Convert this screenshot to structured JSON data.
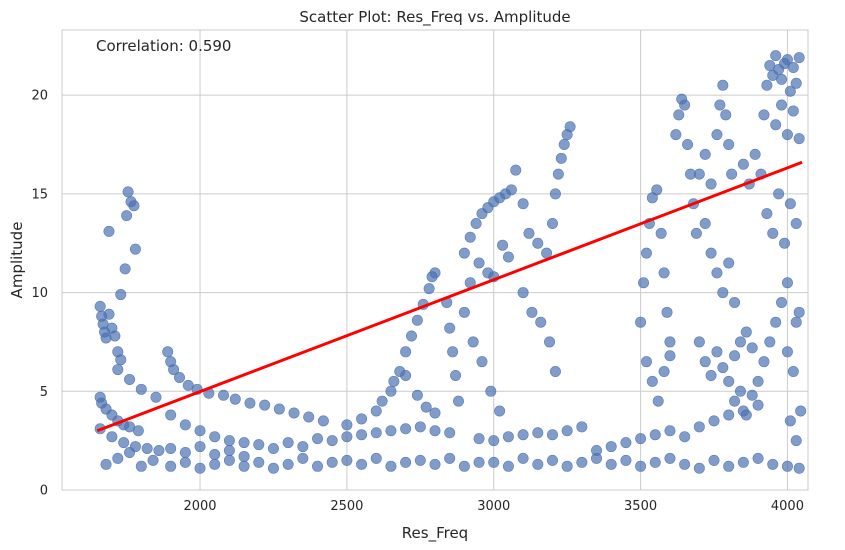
{
  "chart_data": {
    "type": "scatter",
    "title": "Scatter Plot: Res_Freq vs. Amplitude",
    "xlabel": "Res_Freq",
    "ylabel": "Amplitude",
    "annotation": "Correlation: 0.590",
    "xlim": [
      1530,
      4070
    ],
    "ylim": [
      0,
      23.3
    ],
    "xticks": [
      2000,
      2500,
      3000,
      3500,
      4000
    ],
    "yticks": [
      0,
      5,
      10,
      15,
      20
    ],
    "grid": true,
    "point_color": "#4c72b0",
    "line_color": "#ff0000",
    "regression_line": {
      "x": [
        1650,
        4050
      ],
      "y": [
        3.0,
        16.6
      ]
    },
    "series": [
      {
        "values": [
          [
            1660,
            9.3
          ],
          [
            1665,
            8.8
          ],
          [
            1670,
            8.4
          ],
          [
            1675,
            8.0
          ],
          [
            1680,
            7.7
          ],
          [
            1690,
            8.9
          ],
          [
            1700,
            8.2
          ],
          [
            1710,
            7.8
          ],
          [
            1720,
            7.0
          ],
          [
            1730,
            6.6
          ],
          [
            1660,
            4.7
          ],
          [
            1665,
            4.4
          ],
          [
            1680,
            4.1
          ],
          [
            1700,
            3.8
          ],
          [
            1720,
            3.5
          ],
          [
            1740,
            3.3
          ],
          [
            1760,
            3.2
          ],
          [
            1790,
            3.0
          ],
          [
            1660,
            3.1
          ],
          [
            1700,
            2.7
          ],
          [
            1740,
            2.4
          ],
          [
            1780,
            2.2
          ],
          [
            1820,
            2.1
          ],
          [
            1860,
            2.0
          ],
          [
            1690,
            13.1
          ],
          [
            1730,
            9.9
          ],
          [
            1745,
            11.2
          ],
          [
            1750,
            13.9
          ],
          [
            1755,
            15.1
          ],
          [
            1765,
            14.6
          ],
          [
            1775,
            14.4
          ],
          [
            1780,
            12.2
          ],
          [
            1720,
            6.1
          ],
          [
            1760,
            5.6
          ],
          [
            1800,
            5.1
          ],
          [
            1850,
            4.7
          ],
          [
            1680,
            1.3
          ],
          [
            1720,
            1.6
          ],
          [
            1760,
            1.9
          ],
          [
            1800,
            1.2
          ],
          [
            1840,
            1.5
          ],
          [
            1890,
            7.0
          ],
          [
            1900,
            6.5
          ],
          [
            1910,
            6.1
          ],
          [
            1930,
            5.7
          ],
          [
            1960,
            5.3
          ],
          [
            1990,
            5.1
          ],
          [
            2030,
            4.9
          ],
          [
            2080,
            4.8
          ],
          [
            2120,
            4.6
          ],
          [
            2170,
            4.4
          ],
          [
            2220,
            4.3
          ],
          [
            2270,
            4.1
          ],
          [
            2320,
            3.9
          ],
          [
            2370,
            3.7
          ],
          [
            2420,
            3.5
          ],
          [
            1900,
            3.8
          ],
          [
            1950,
            3.3
          ],
          [
            2000,
            3.0
          ],
          [
            2050,
            2.7
          ],
          [
            2100,
            2.5
          ],
          [
            2150,
            2.4
          ],
          [
            1900,
            2.1
          ],
          [
            1950,
            1.9
          ],
          [
            2000,
            2.2
          ],
          [
            2050,
            1.8
          ],
          [
            2100,
            2.0
          ],
          [
            2150,
            1.7
          ],
          [
            2200,
            2.3
          ],
          [
            2250,
            2.1
          ],
          [
            2300,
            2.4
          ],
          [
            2350,
            2.2
          ],
          [
            2400,
            2.6
          ],
          [
            2450,
            2.5
          ],
          [
            2500,
            2.7
          ],
          [
            2550,
            2.8
          ],
          [
            2600,
            2.9
          ],
          [
            2650,
            3.0
          ],
          [
            2700,
            3.1
          ],
          [
            2750,
            3.2
          ],
          [
            2800,
            3.0
          ],
          [
            2850,
            2.9
          ],
          [
            1900,
            1.2
          ],
          [
            1950,
            1.4
          ],
          [
            2000,
            1.1
          ],
          [
            2050,
            1.3
          ],
          [
            2100,
            1.5
          ],
          [
            2150,
            1.2
          ],
          [
            2200,
            1.4
          ],
          [
            2250,
            1.1
          ],
          [
            2300,
            1.3
          ],
          [
            2350,
            1.6
          ],
          [
            2400,
            1.2
          ],
          [
            2450,
            1.4
          ],
          [
            2500,
            1.5
          ],
          [
            2550,
            1.3
          ],
          [
            2600,
            1.6
          ],
          [
            2650,
            1.2
          ],
          [
            2700,
            1.4
          ],
          [
            2750,
            1.5
          ],
          [
            2800,
            1.3
          ],
          [
            2850,
            1.6
          ],
          [
            2900,
            1.2
          ],
          [
            2950,
            1.4
          ],
          [
            2500,
            3.3
          ],
          [
            2550,
            3.6
          ],
          [
            2600,
            4.0
          ],
          [
            2650,
            5.0
          ],
          [
            2680,
            6.0
          ],
          [
            2700,
            7.0
          ],
          [
            2720,
            7.8
          ],
          [
            2740,
            8.6
          ],
          [
            2760,
            9.4
          ],
          [
            2780,
            10.2
          ],
          [
            2790,
            10.8
          ],
          [
            2800,
            11.0
          ],
          [
            2620,
            4.5
          ],
          [
            2660,
            5.5
          ],
          [
            2700,
            5.8
          ],
          [
            2740,
            4.8
          ],
          [
            2770,
            4.2
          ],
          [
            2800,
            3.9
          ],
          [
            2840,
            9.5
          ],
          [
            2850,
            8.2
          ],
          [
            2860,
            7.0
          ],
          [
            2870,
            5.8
          ],
          [
            2880,
            4.5
          ],
          [
            2900,
            12.0
          ],
          [
            2920,
            12.8
          ],
          [
            2940,
            13.5
          ],
          [
            2960,
            14.0
          ],
          [
            2980,
            14.3
          ],
          [
            3000,
            14.6
          ],
          [
            3020,
            14.8
          ],
          [
            3040,
            15.0
          ],
          [
            3060,
            15.2
          ],
          [
            3075,
            16.2
          ],
          [
            2920,
            10.5
          ],
          [
            2950,
            11.5
          ],
          [
            2980,
            11.0
          ],
          [
            3000,
            10.8
          ],
          [
            3030,
            12.4
          ],
          [
            3050,
            11.8
          ],
          [
            2900,
            9.0
          ],
          [
            2930,
            7.5
          ],
          [
            2960,
            6.5
          ],
          [
            2990,
            5.0
          ],
          [
            3020,
            4.0
          ],
          [
            3100,
            14.5
          ],
          [
            3120,
            13.0
          ],
          [
            3150,
            12.5
          ],
          [
            3180,
            12.0
          ],
          [
            3200,
            13.5
          ],
          [
            3210,
            15.0
          ],
          [
            3220,
            16.0
          ],
          [
            3230,
            16.8
          ],
          [
            3240,
            17.5
          ],
          [
            3250,
            18.0
          ],
          [
            3260,
            18.4
          ],
          [
            3100,
            10.0
          ],
          [
            3130,
            9.0
          ],
          [
            3160,
            8.5
          ],
          [
            3190,
            7.5
          ],
          [
            3210,
            6.0
          ],
          [
            2950,
            2.6
          ],
          [
            3000,
            2.5
          ],
          [
            3050,
            2.7
          ],
          [
            3100,
            2.8
          ],
          [
            3150,
            2.9
          ],
          [
            3200,
            2.8
          ],
          [
            3250,
            3.0
          ],
          [
            3300,
            3.2
          ],
          [
            3000,
            1.4
          ],
          [
            3050,
            1.2
          ],
          [
            3100,
            1.6
          ],
          [
            3150,
            1.3
          ],
          [
            3200,
            1.5
          ],
          [
            3250,
            1.2
          ],
          [
            3300,
            1.4
          ],
          [
            3350,
            1.6
          ],
          [
            3400,
            1.3
          ],
          [
            3450,
            1.5
          ],
          [
            3500,
            1.2
          ],
          [
            3550,
            1.4
          ],
          [
            3600,
            1.6
          ],
          [
            3650,
            1.3
          ],
          [
            3700,
            1.1
          ],
          [
            3750,
            1.5
          ],
          [
            3800,
            1.2
          ],
          [
            3850,
            1.4
          ],
          [
            3900,
            1.6
          ],
          [
            3950,
            1.3
          ],
          [
            4000,
            1.2
          ],
          [
            4040,
            1.1
          ],
          [
            3350,
            2.0
          ],
          [
            3400,
            2.2
          ],
          [
            3450,
            2.4
          ],
          [
            3500,
            2.6
          ],
          [
            3550,
            2.8
          ],
          [
            3600,
            3.0
          ],
          [
            3650,
            2.7
          ],
          [
            3700,
            3.2
          ],
          [
            3750,
            3.5
          ],
          [
            3800,
            3.8
          ],
          [
            3850,
            4.0
          ],
          [
            3900,
            4.3
          ],
          [
            3500,
            8.5
          ],
          [
            3510,
            10.5
          ],
          [
            3520,
            12.0
          ],
          [
            3530,
            13.5
          ],
          [
            3540,
            14.8
          ],
          [
            3555,
            15.2
          ],
          [
            3570,
            13.0
          ],
          [
            3580,
            11.0
          ],
          [
            3590,
            9.0
          ],
          [
            3600,
            7.5
          ],
          [
            3520,
            6.5
          ],
          [
            3540,
            5.5
          ],
          [
            3560,
            4.5
          ],
          [
            3580,
            6.0
          ],
          [
            3600,
            6.8
          ],
          [
            3620,
            18.0
          ],
          [
            3630,
            19.0
          ],
          [
            3640,
            19.8
          ],
          [
            3650,
            19.5
          ],
          [
            3660,
            17.5
          ],
          [
            3670,
            16.0
          ],
          [
            3680,
            14.5
          ],
          [
            3690,
            13.0
          ],
          [
            3700,
            16.0
          ],
          [
            3720,
            17.0
          ],
          [
            3740,
            15.5
          ],
          [
            3760,
            18.0
          ],
          [
            3770,
            19.5
          ],
          [
            3780,
            20.5
          ],
          [
            3790,
            19.0
          ],
          [
            3800,
            17.5
          ],
          [
            3810,
            16.0
          ],
          [
            3720,
            13.5
          ],
          [
            3740,
            12.0
          ],
          [
            3760,
            11.0
          ],
          [
            3780,
            10.0
          ],
          [
            3800,
            11.5
          ],
          [
            3820,
            9.5
          ],
          [
            3700,
            7.5
          ],
          [
            3720,
            6.5
          ],
          [
            3740,
            5.8
          ],
          [
            3760,
            7.0
          ],
          [
            3780,
            6.2
          ],
          [
            3800,
            5.5
          ],
          [
            3820,
            6.8
          ],
          [
            3840,
            7.5
          ],
          [
            3860,
            8.0
          ],
          [
            3880,
            7.2
          ],
          [
            3820,
            4.5
          ],
          [
            3840,
            5.0
          ],
          [
            3860,
            3.8
          ],
          [
            3880,
            4.8
          ],
          [
            3900,
            5.5
          ],
          [
            3920,
            6.5
          ],
          [
            3940,
            7.5
          ],
          [
            3960,
            8.5
          ],
          [
            3980,
            9.5
          ],
          [
            4000,
            10.5
          ],
          [
            3850,
            16.5
          ],
          [
            3870,
            15.5
          ],
          [
            3890,
            17.0
          ],
          [
            3910,
            16.0
          ],
          [
            3930,
            14.0
          ],
          [
            3950,
            13.0
          ],
          [
            3970,
            15.0
          ],
          [
            3990,
            12.5
          ],
          [
            4010,
            14.5
          ],
          [
            4030,
            13.5
          ],
          [
            3920,
            19.0
          ],
          [
            3930,
            20.5
          ],
          [
            3940,
            21.5
          ],
          [
            3950,
            21.0
          ],
          [
            3960,
            22.0
          ],
          [
            3970,
            21.3
          ],
          [
            3980,
            20.8
          ],
          [
            3990,
            21.6
          ],
          [
            4000,
            21.8
          ],
          [
            4010,
            20.2
          ],
          [
            4020,
            21.4
          ],
          [
            4030,
            20.6
          ],
          [
            4040,
            21.9
          ],
          [
            3960,
            18.5
          ],
          [
            3980,
            19.5
          ],
          [
            4000,
            18.0
          ],
          [
            4020,
            19.2
          ],
          [
            4040,
            17.8
          ],
          [
            4000,
            7.0
          ],
          [
            4020,
            6.0
          ],
          [
            4030,
            8.5
          ],
          [
            4040,
            9.0
          ],
          [
            4010,
            3.5
          ],
          [
            4030,
            2.5
          ],
          [
            4045,
            4.0
          ]
        ]
      }
    ]
  }
}
